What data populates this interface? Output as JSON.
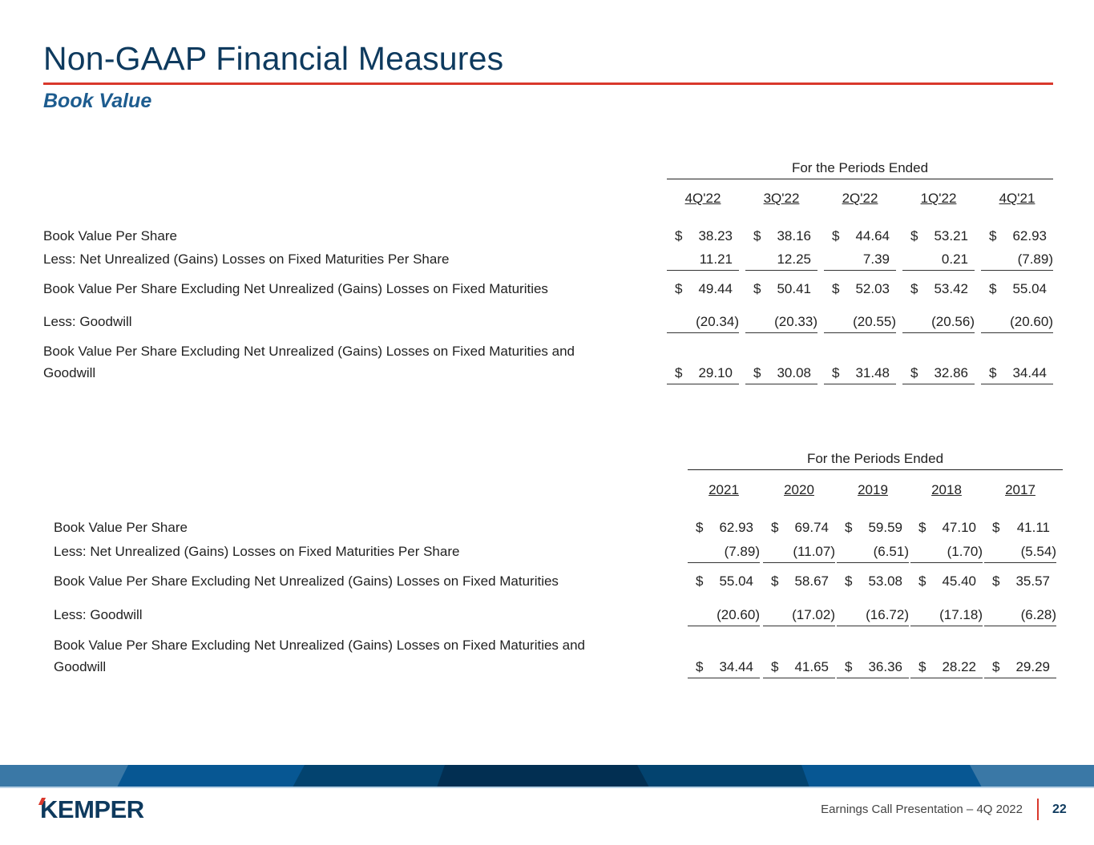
{
  "header": {
    "title": "Non-GAAP Financial Measures",
    "subtitle": "Book Value"
  },
  "tables": [
    {
      "group_header": "For the Periods Ended",
      "columns": [
        "4Q'22",
        "3Q'22",
        "2Q'22",
        "1Q'22",
        "4Q'21"
      ],
      "rows": [
        {
          "label": "Book Value Per Share",
          "dollar": true,
          "values": [
            "38.23",
            "38.16",
            "44.64",
            "53.21",
            "62.93"
          ]
        },
        {
          "label": "Less: Net Unrealized (Gains) Losses on Fixed Maturities Per Share",
          "dollar": false,
          "values": [
            "11.21",
            "12.25",
            "7.39",
            "0.21",
            "(7.89)"
          ]
        },
        {
          "label": "Book Value Per Share Excluding Net Unrealized (Gains) Losses on Fixed Maturities",
          "dollar": true,
          "values": [
            "49.44",
            "50.41",
            "52.03",
            "53.42",
            "55.04"
          ]
        },
        {
          "label": "Less: Goodwill",
          "dollar": false,
          "values": [
            "(20.34)",
            "(20.33)",
            "(20.55)",
            "(20.56)",
            "(20.60)"
          ]
        },
        {
          "label": "Book Value Per Share Excluding Net Unrealized (Gains) Losses on Fixed Maturities and",
          "label2": "Goodwill",
          "dollar": true,
          "values": [
            "29.10",
            "30.08",
            "31.48",
            "32.86",
            "34.44"
          ]
        }
      ]
    },
    {
      "group_header": "For the Periods Ended",
      "columns": [
        "2021",
        "2020",
        "2019",
        "2018",
        "2017"
      ],
      "rows": [
        {
          "label": "Book Value Per Share",
          "dollar": true,
          "values": [
            "62.93",
            "69.74",
            "59.59",
            "47.10",
            "41.11"
          ]
        },
        {
          "label": "Less: Net Unrealized (Gains) Losses on Fixed Maturities Per Share",
          "dollar": false,
          "values": [
            "(7.89)",
            "(11.07)",
            "(6.51)",
            "(1.70)",
            "(5.54)"
          ]
        },
        {
          "label": "Book Value Per Share Excluding Net Unrealized (Gains) Losses on Fixed Maturities",
          "dollar": true,
          "values": [
            "55.04",
            "58.67",
            "53.08",
            "45.40",
            "35.57"
          ]
        },
        {
          "label": "Less: Goodwill",
          "dollar": false,
          "values": [
            "(20.60)",
            "(17.02)",
            "(16.72)",
            "(17.18)",
            "(6.28)"
          ]
        },
        {
          "label": "Book Value Per Share Excluding Net Unrealized (Gains) Losses on Fixed Maturities and",
          "label2": "Goodwill",
          "dollar": true,
          "values": [
            "34.44",
            "41.65",
            "36.36",
            "28.22",
            "29.29"
          ]
        }
      ]
    }
  ],
  "currency_symbol": "$",
  "footer": {
    "logo": "KEMPER",
    "presentation": "Earnings Call Presentation – 4Q 2022",
    "page": "22"
  },
  "colors": {
    "title": "#0e3a5e",
    "accent_red": "#d9382c",
    "subtitle": "#1d5c8f"
  }
}
